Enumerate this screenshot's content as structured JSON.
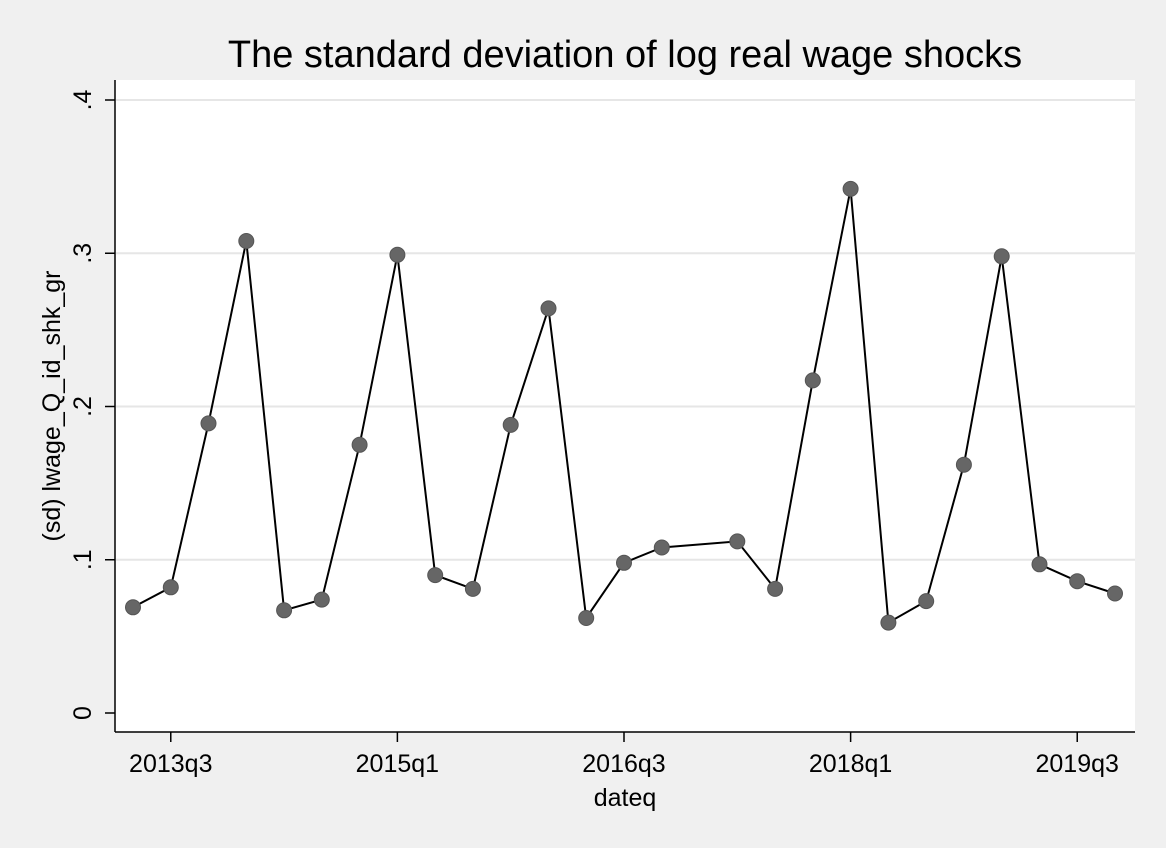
{
  "chart_data": {
    "type": "line",
    "title": "The standard deviation of log real wage shocks",
    "xlabel": "dateq",
    "ylabel": "(sd) lwage_Q_id_shk_gr",
    "ylim": [
      0,
      0.4
    ],
    "y_ticks": [
      0,
      0.1,
      0.2,
      0.3,
      0.4
    ],
    "y_tick_labels": [
      "0",
      ".1",
      ".2",
      ".3",
      ".4"
    ],
    "x_range": [
      "2013q2",
      "2019q4"
    ],
    "x_ticks": [
      "2013q3",
      "2015q1",
      "2016q3",
      "2018q1",
      "2019q3"
    ],
    "grid": true,
    "legend": "none",
    "colors": {
      "background": "#f0f0f0",
      "plot_background": "#ffffff",
      "line": "#000000",
      "marker": "#666666",
      "gridline": "#e6e6e6"
    },
    "series": [
      {
        "x": [
          "2013q2",
          "2013q3",
          "2013q4",
          "2014q1",
          "2014q2",
          "2014q3",
          "2014q4",
          "2015q1",
          "2015q2",
          "2015q3",
          "2015q4",
          "2016q1",
          "2016q2",
          "2016q3",
          "2016q4",
          "2017q2",
          "2017q3",
          "2017q4",
          "2018q1",
          "2018q2",
          "2018q3",
          "2018q4",
          "2019q1",
          "2019q2",
          "2019q3",
          "2019q4"
        ],
        "values": [
          0.069,
          0.082,
          0.189,
          0.308,
          0.067,
          0.074,
          0.175,
          0.299,
          0.09,
          0.081,
          0.188,
          0.264,
          0.062,
          0.098,
          0.108,
          0.112,
          0.081,
          0.217,
          0.342,
          0.059,
          0.073,
          0.162,
          0.298,
          0.097,
          0.086,
          0.078
        ]
      }
    ]
  }
}
